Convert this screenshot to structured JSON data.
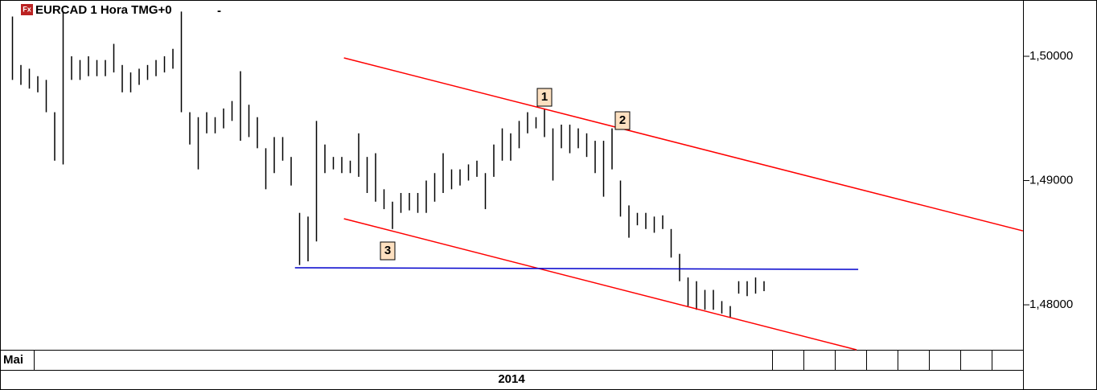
{
  "chart_data": {
    "type": "range-bar",
    "title": "EURCAD 1 Hora TMG+0",
    "icon_label": "Fx",
    "menu_label": "-",
    "x_period_label": "Mai",
    "x_year_label": "2014",
    "color": "#000000",
    "high": [
      1.5032,
      1.4993,
      1.499,
      1.4984,
      1.4981,
      1.4955,
      1.5036,
      1.5,
      1.4997,
      1.5,
      1.4997,
      1.4997,
      1.501,
      1.4993,
      1.4987,
      1.499,
      1.4993,
      1.4997,
      1.5,
      1.5006,
      1.5036,
      1.4955,
      1.4951,
      1.4955,
      1.4951,
      1.4958,
      1.4964,
      1.4988,
      1.4961,
      1.4951,
      1.4926,
      1.4935,
      1.4935,
      1.4919,
      1.4874,
      1.4871,
      1.4948,
      1.4929,
      1.4919,
      1.4919,
      1.4916,
      1.4938,
      1.4919,
      1.4922,
      1.4893,
      1.4883,
      1.489,
      1.489,
      1.489,
      1.49,
      1.4906,
      1.4922,
      1.4909,
      1.4909,
      1.4913,
      1.4916,
      1.4906,
      1.4929,
      1.4942,
      1.4938,
      1.4948,
      1.4955,
      1.4951,
      1.4958,
      1.4942,
      1.4945,
      1.4945,
      1.4942,
      1.4938,
      1.4932,
      1.4932,
      1.4942,
      1.49,
      1.488,
      1.4874,
      1.4874,
      1.4871,
      1.4872,
      1.4861,
      1.4841,
      1.4822,
      1.4819,
      1.4812,
      1.4812,
      1.4803,
      1.4799,
      1.4819,
      1.4819,
      1.4822,
      1.4819
    ],
    "low": [
      1.4981,
      1.4977,
      1.4974,
      1.4971,
      1.4955,
      1.4916,
      1.4913,
      1.4981,
      1.4981,
      1.4984,
      1.4984,
      1.4984,
      1.4987,
      1.4971,
      1.4971,
      1.4977,
      1.4981,
      1.4984,
      1.4987,
      1.499,
      1.4955,
      1.4929,
      1.4909,
      1.4938,
      1.4938,
      1.4942,
      1.4948,
      1.4932,
      1.4935,
      1.4926,
      1.4893,
      1.4906,
      1.4916,
      1.4896,
      1.4832,
      1.4835,
      1.4851,
      1.4906,
      1.4909,
      1.4906,
      1.4906,
      1.4903,
      1.489,
      1.4883,
      1.4877,
      1.4861,
      1.4874,
      1.4876,
      1.4874,
      1.4874,
      1.4883,
      1.489,
      1.4893,
      1.4896,
      1.49,
      1.4903,
      1.4877,
      1.4903,
      1.4916,
      1.4916,
      1.4926,
      1.4938,
      1.4942,
      1.4935,
      1.49,
      1.4926,
      1.4922,
      1.4926,
      1.4919,
      1.4906,
      1.4887,
      1.4909,
      1.4871,
      1.4854,
      1.4864,
      1.4861,
      1.4858,
      1.4861,
      1.4838,
      1.4819,
      1.4799,
      1.4796,
      1.4796,
      1.4796,
      1.4793,
      1.479,
      1.4809,
      1.4807,
      1.4809,
      1.4811
    ],
    "ylim": [
      1.47638,
      1.50453
    ],
    "yticks": [
      {
        "value": 1.48,
        "label": "1,48000"
      },
      {
        "value": 1.49,
        "label": "1,49000"
      },
      {
        "value": 1.5,
        "label": "1,50000"
      }
    ],
    "lines": [
      {
        "color": "#ff0000",
        "x": [
          39.3,
          119.7
        ],
        "y": [
          1.49987,
          1.48595
        ]
      },
      {
        "color": "#ff0000",
        "x": [
          39.3,
          100
        ],
        "y": [
          1.48693,
          1.47638
        ]
      },
      {
        "color": "#0000cc",
        "x": [
          33.5,
          100.2
        ],
        "y": [
          1.48298,
          1.48285
        ]
      }
    ],
    "annotations": [
      "1",
      "2",
      "3"
    ]
  }
}
